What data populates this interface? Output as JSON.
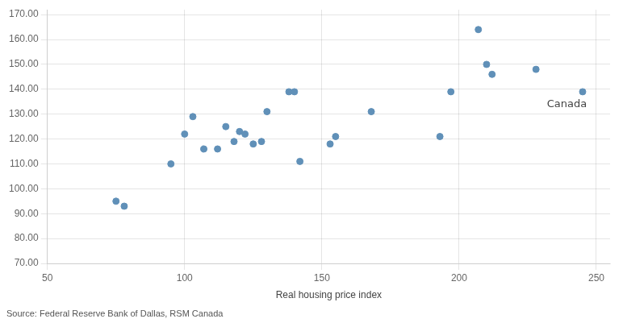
{
  "chart_data": {
    "type": "scatter",
    "x": [
      75,
      78,
      95,
      100,
      103,
      107,
      112,
      115,
      118,
      120,
      122,
      125,
      128,
      130,
      138,
      140,
      142,
      153,
      155,
      168,
      193,
      197,
      207,
      210,
      212,
      228,
      245
    ],
    "values": [
      95,
      93,
      110,
      122,
      129,
      116,
      116,
      125,
      119,
      123,
      122,
      118,
      119,
      131,
      139,
      139,
      111,
      118,
      121,
      131,
      121,
      139,
      164,
      150,
      146,
      148,
      139
    ],
    "color": "#6090b8",
    "xlabel": "Real housing price index",
    "xlim": [
      50,
      255
    ],
    "ylim": [
      70,
      172
    ],
    "xticks": [
      50,
      100,
      150,
      200,
      250
    ],
    "yticks": [
      {
        "value": 70,
        "label": "70.00"
      },
      {
        "value": 80,
        "label": "80.00"
      },
      {
        "value": 90,
        "label": "90.00"
      },
      {
        "value": 100,
        "label": "100.00"
      },
      {
        "value": 110,
        "label": "110.00"
      },
      {
        "value": 120,
        "label": "120.00"
      },
      {
        "value": 130,
        "label": "130.00"
      },
      {
        "value": 140,
        "label": "140.00"
      },
      {
        "value": 150,
        "label": "150.00"
      },
      {
        "value": 160,
        "label": "160.00"
      },
      {
        "value": 170,
        "label": "170.00"
      }
    ],
    "annotations": [
      {
        "text": "Canada",
        "x": 232,
        "y": 134
      }
    ],
    "source": "Source: Federal Reserve Bank of Dallas, RSM Canada",
    "grid": true
  }
}
